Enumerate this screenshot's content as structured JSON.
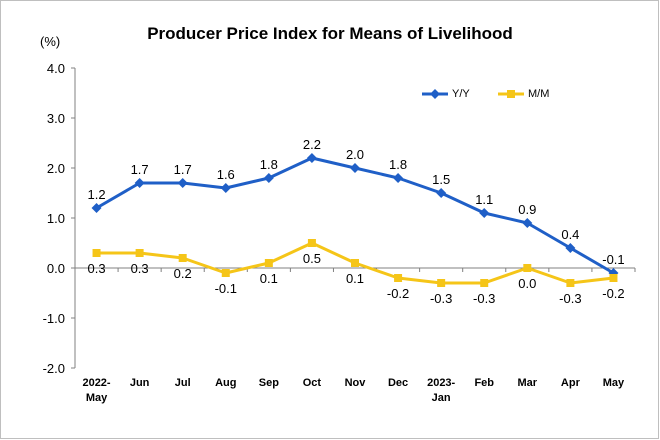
{
  "chart_data": {
    "type": "line",
    "title": "Producer Price Index for Means of Livelihood",
    "unit_label": "(%)",
    "categories": [
      "2022-\nMay",
      "Jun",
      "Jul",
      "Aug",
      "Sep",
      "Oct",
      "Nov",
      "Dec",
      "2023-\nJan",
      "Feb",
      "Mar",
      "Apr",
      "May"
    ],
    "ylim": [
      -2.0,
      4.0
    ],
    "yticks": [
      4.0,
      3.0,
      2.0,
      1.0,
      0.0,
      -1.0,
      -2.0
    ],
    "grid": false,
    "legend_position": "top-right",
    "series": [
      {
        "name": "Y/Y",
        "color": "#1f5fc7",
        "marker": "diamond",
        "values": [
          1.2,
          1.7,
          1.7,
          1.6,
          1.8,
          2.2,
          2.0,
          1.8,
          1.5,
          1.1,
          0.9,
          0.4,
          -0.1
        ]
      },
      {
        "name": "M/M",
        "color": "#f5c518",
        "marker": "square",
        "values": [
          0.3,
          0.3,
          0.2,
          -0.1,
          0.1,
          0.5,
          0.1,
          -0.2,
          -0.3,
          -0.3,
          0.0,
          -0.3,
          -0.2
        ]
      }
    ]
  }
}
